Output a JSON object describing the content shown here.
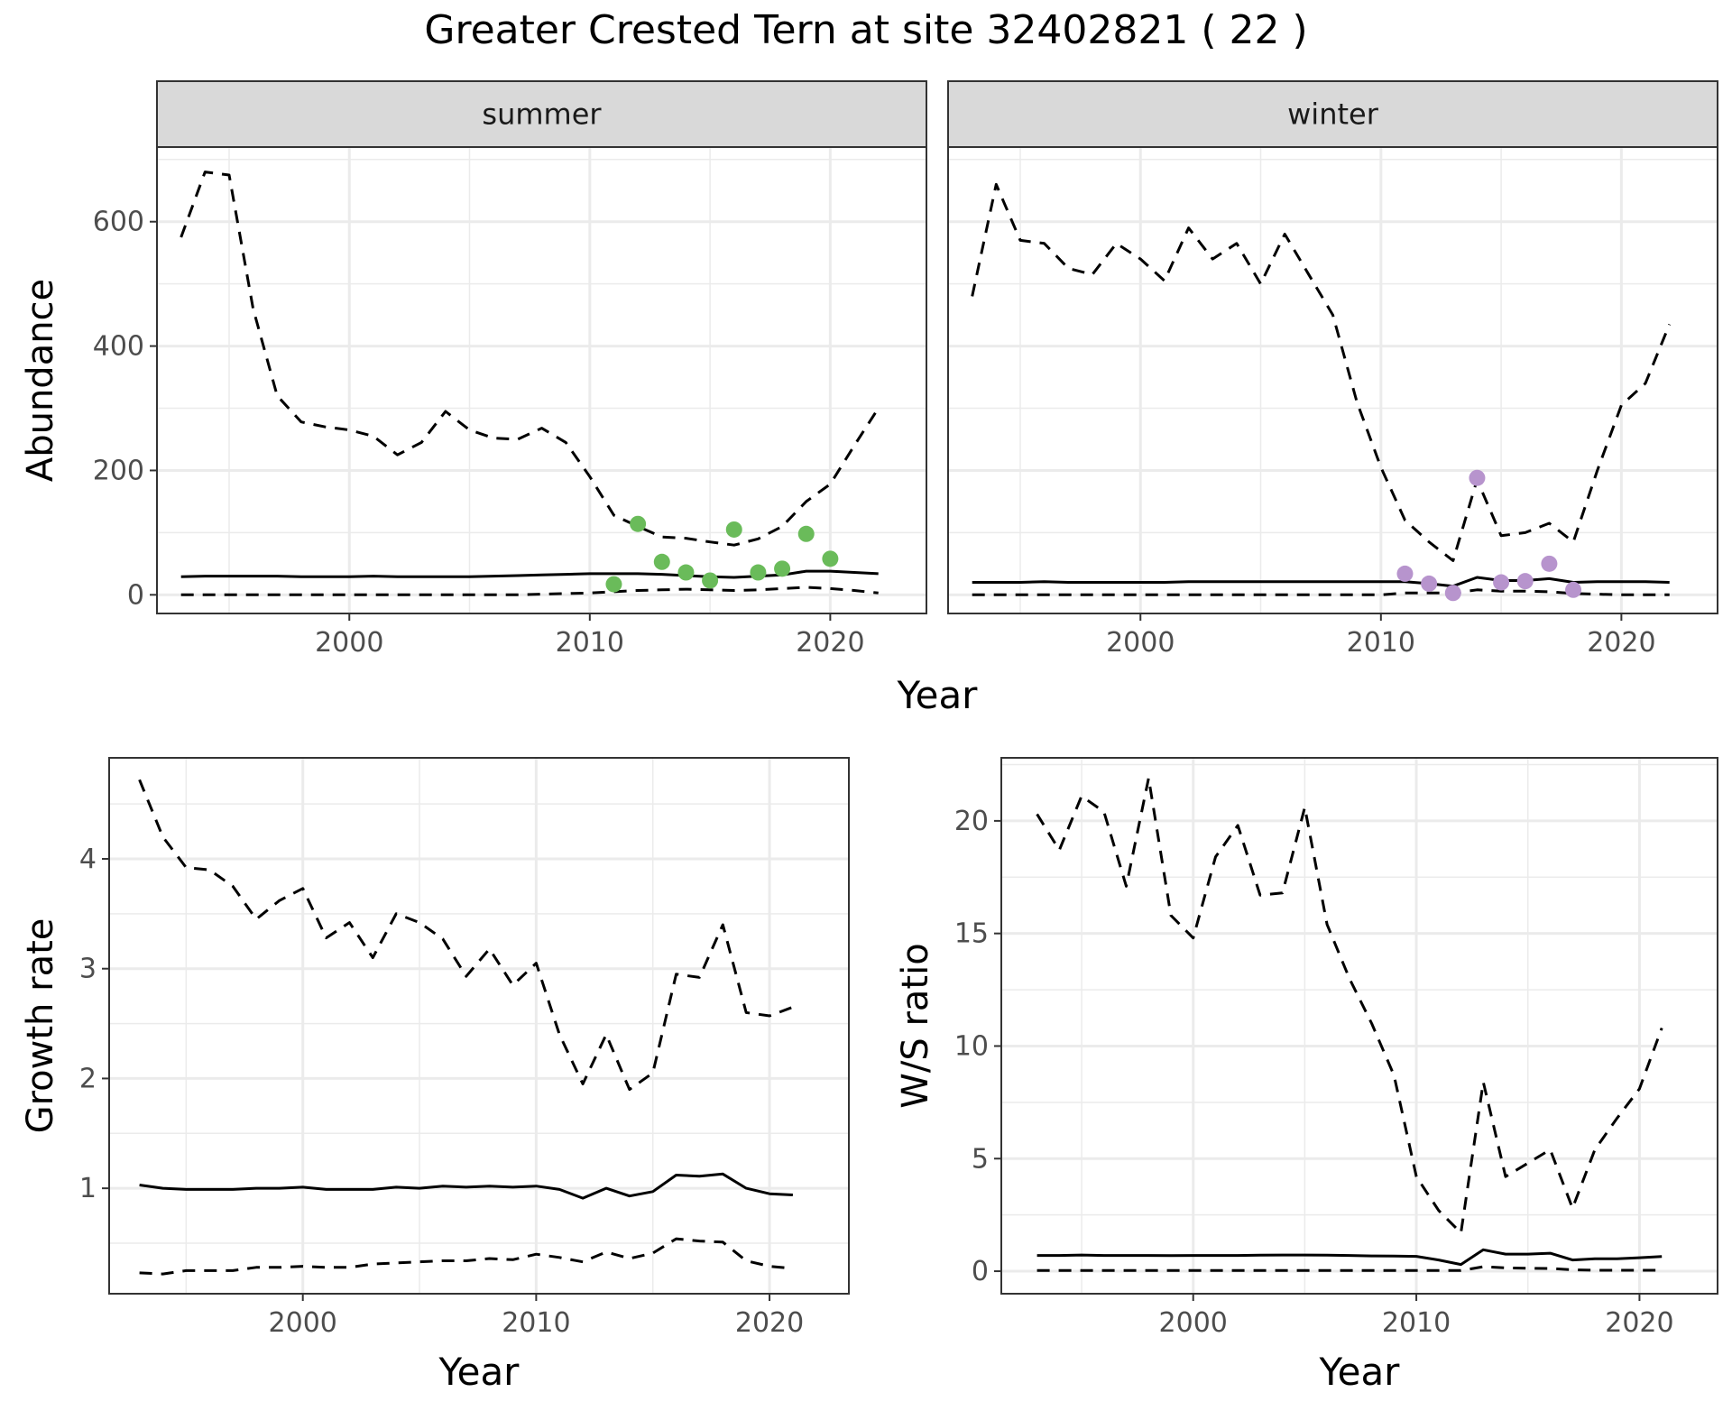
{
  "title": "Greater Crested Tern at site 32402821 ( 22 )",
  "colors": {
    "summer_points": "#6abb5a",
    "winter_points": "#b794cd",
    "lines": "#000000",
    "strip_fill": "#d9d9d9",
    "grid": "#ebebeb"
  },
  "chart_data": [
    {
      "type": "line",
      "facet": "summer",
      "xlabel": "Year",
      "ylabel": "Abundance",
      "xlim": [
        1992,
        2024
      ],
      "ylim": [
        -30,
        720
      ],
      "xticks": [
        2000,
        2010,
        2020
      ],
      "yticks": [
        0,
        200,
        400,
        600
      ],
      "grid": true,
      "series": [
        {
          "role": "upper",
          "style": "dashed",
          "x": [
            1993,
            1994,
            1995,
            1996,
            1997,
            1998,
            1999,
            2000,
            2001,
            2002,
            2003,
            2004,
            2005,
            2006,
            2007,
            2008,
            2009,
            2010,
            2011,
            2012,
            2013,
            2014,
            2015,
            2016,
            2017,
            2018,
            2019,
            2020,
            2021,
            2022
          ],
          "values": [
            575,
            680,
            675,
            460,
            320,
            278,
            270,
            265,
            255,
            225,
            245,
            295,
            265,
            252,
            250,
            268,
            245,
            190,
            128,
            110,
            93,
            91,
            85,
            80,
            90,
            110,
            150,
            178,
            240,
            300
          ]
        },
        {
          "role": "mean",
          "style": "solid",
          "x": [
            1993,
            1994,
            1995,
            1996,
            1997,
            1998,
            1999,
            2000,
            2001,
            2002,
            2003,
            2004,
            2005,
            2006,
            2007,
            2008,
            2009,
            2010,
            2011,
            2012,
            2013,
            2014,
            2015,
            2016,
            2017,
            2018,
            2019,
            2020,
            2021,
            2022
          ],
          "values": [
            29,
            30,
            30,
            30,
            30,
            29,
            29,
            29,
            30,
            29,
            29,
            29,
            29,
            30,
            31,
            32,
            33,
            34,
            34,
            34,
            33,
            31,
            29,
            28,
            30,
            32,
            38,
            38,
            36,
            34
          ]
        },
        {
          "role": "lower",
          "style": "dashed",
          "x": [
            1993,
            1994,
            1995,
            1996,
            1997,
            1998,
            1999,
            2000,
            2001,
            2002,
            2003,
            2004,
            2005,
            2006,
            2007,
            2008,
            2009,
            2010,
            2011,
            2012,
            2013,
            2014,
            2015,
            2016,
            2017,
            2018,
            2019,
            2020,
            2021,
            2022
          ],
          "values": [
            0,
            0,
            0,
            0,
            0,
            0,
            0,
            0,
            0,
            0,
            0,
            0,
            0,
            0,
            0,
            1,
            2,
            3,
            5,
            7,
            8,
            9,
            8,
            7,
            8,
            10,
            12,
            10,
            7,
            3
          ]
        },
        {
          "role": "observed",
          "style": "points",
          "x": [
            2011,
            2012,
            2013,
            2014,
            2015,
            2016,
            2017,
            2018,
            2019,
            2020
          ],
          "values": [
            17,
            114,
            53,
            36,
            23,
            105,
            36,
            42,
            98,
            58
          ]
        }
      ]
    },
    {
      "type": "line",
      "facet": "winter",
      "xlabel": "Year",
      "ylabel": "Abundance",
      "xlim": [
        1992,
        2024
      ],
      "ylim": [
        -30,
        720
      ],
      "xticks": [
        2000,
        2010,
        2020
      ],
      "yticks": [
        0,
        200,
        400,
        600
      ],
      "grid": true,
      "series": [
        {
          "role": "upper",
          "style": "dashed",
          "x": [
            1993,
            1994,
            1995,
            1996,
            1997,
            1998,
            1999,
            2000,
            2001,
            2002,
            2003,
            2004,
            2005,
            2006,
            2007,
            2008,
            2009,
            2010,
            2011,
            2012,
            2013,
            2014,
            2015,
            2016,
            2017,
            2018,
            2019,
            2020,
            2021,
            2022
          ],
          "values": [
            480,
            660,
            570,
            565,
            525,
            515,
            565,
            540,
            505,
            590,
            540,
            565,
            500,
            580,
            515,
            450,
            310,
            205,
            120,
            85,
            55,
            185,
            95,
            100,
            115,
            85,
            200,
            305,
            340,
            435
          ]
        },
        {
          "role": "mean",
          "style": "solid",
          "x": [
            1993,
            1994,
            1995,
            1996,
            1997,
            1998,
            1999,
            2000,
            2001,
            2002,
            2003,
            2004,
            2005,
            2006,
            2007,
            2008,
            2009,
            2010,
            2011,
            2012,
            2013,
            2014,
            2015,
            2016,
            2017,
            2018,
            2019,
            2020,
            2021,
            2022
          ],
          "values": [
            20,
            20,
            20,
            21,
            20,
            20,
            20,
            20,
            20,
            21,
            21,
            21,
            21,
            21,
            21,
            21,
            21,
            21,
            21,
            18,
            14,
            28,
            23,
            23,
            26,
            20,
            21,
            21,
            21,
            20
          ]
        },
        {
          "role": "lower",
          "style": "dashed",
          "x": [
            1993,
            1994,
            1995,
            1996,
            1997,
            1998,
            1999,
            2000,
            2001,
            2002,
            2003,
            2004,
            2005,
            2006,
            2007,
            2008,
            2009,
            2010,
            2011,
            2012,
            2013,
            2014,
            2015,
            2016,
            2017,
            2018,
            2019,
            2020,
            2021,
            2022
          ],
          "values": [
            0,
            0,
            0,
            0,
            0,
            0,
            0,
            0,
            0,
            0,
            0,
            0,
            0,
            0,
            0,
            0,
            0,
            0,
            3,
            3,
            3,
            8,
            6,
            6,
            5,
            2,
            1,
            0,
            0,
            0
          ]
        },
        {
          "role": "observed",
          "style": "points",
          "x": [
            2011,
            2012,
            2013,
            2014,
            2015,
            2016,
            2017,
            2018
          ],
          "values": [
            34,
            18,
            3,
            188,
            20,
            22,
            50,
            8
          ]
        }
      ]
    },
    {
      "type": "line",
      "xlabel": "Year",
      "ylabel": "Growth rate",
      "xlim": [
        1991.7,
        2023.4
      ],
      "ylim": [
        0.04,
        4.92
      ],
      "xticks": [
        2000,
        2010,
        2020
      ],
      "yticks": [
        1,
        2,
        3,
        4
      ],
      "grid": true,
      "series": [
        {
          "role": "upper",
          "style": "dashed",
          "x": [
            1993,
            1994,
            1995,
            1996,
            1997,
            1998,
            1999,
            2000,
            2001,
            2002,
            2003,
            2004,
            2005,
            2006,
            2007,
            2008,
            2009,
            2010,
            2011,
            2012,
            2013,
            2014,
            2015,
            2016,
            2017,
            2018,
            2019,
            2020,
            2021
          ],
          "values": [
            4.72,
            4.2,
            3.92,
            3.9,
            3.75,
            3.45,
            3.62,
            3.73,
            3.28,
            3.42,
            3.1,
            3.5,
            3.42,
            3.27,
            2.93,
            3.18,
            2.85,
            3.05,
            2.4,
            1.95,
            2.4,
            1.9,
            2.05,
            2.95,
            2.92,
            3.4,
            2.6,
            2.57,
            2.65
          ]
        },
        {
          "role": "mean",
          "style": "solid",
          "x": [
            1993,
            1994,
            1995,
            1996,
            1997,
            1998,
            1999,
            2000,
            2001,
            2002,
            2003,
            2004,
            2005,
            2006,
            2007,
            2008,
            2009,
            2010,
            2011,
            2012,
            2013,
            2014,
            2015,
            2016,
            2017,
            2018,
            2019,
            2020,
            2021
          ],
          "values": [
            1.03,
            1.0,
            0.99,
            0.99,
            0.99,
            1.0,
            1.0,
            1.01,
            0.99,
            0.99,
            0.99,
            1.01,
            1.0,
            1.02,
            1.01,
            1.02,
            1.01,
            1.02,
            0.99,
            0.91,
            1.0,
            0.93,
            0.97,
            1.12,
            1.11,
            1.13,
            1.0,
            0.95,
            0.94
          ]
        },
        {
          "role": "lower",
          "style": "dashed",
          "x": [
            1993,
            1994,
            1995,
            1996,
            1997,
            1998,
            1999,
            2000,
            2001,
            2002,
            2003,
            2004,
            2005,
            2006,
            2007,
            2008,
            2009,
            2010,
            2011,
            2012,
            2013,
            2014,
            2015,
            2016,
            2017,
            2018,
            2019,
            2020,
            2021
          ],
          "values": [
            0.23,
            0.22,
            0.25,
            0.25,
            0.25,
            0.28,
            0.28,
            0.29,
            0.28,
            0.28,
            0.31,
            0.32,
            0.33,
            0.34,
            0.34,
            0.36,
            0.35,
            0.4,
            0.37,
            0.33,
            0.42,
            0.36,
            0.41,
            0.54,
            0.52,
            0.51,
            0.34,
            0.29,
            0.27
          ]
        }
      ]
    },
    {
      "type": "line",
      "xlabel": "Year",
      "ylabel": "W/S ratio",
      "xlim": [
        1991.4,
        2023.5
      ],
      "ylim": [
        -1.0,
        22.8
      ],
      "xticks": [
        2000,
        2010,
        2020
      ],
      "yticks": [
        0,
        5,
        10,
        15,
        20
      ],
      "grid": true,
      "series": [
        {
          "role": "upper",
          "style": "dashed",
          "x": [
            1993,
            1994,
            1995,
            1996,
            1997,
            1998,
            1999,
            2000,
            2001,
            2002,
            2003,
            2004,
            2005,
            2006,
            2007,
            2008,
            2009,
            2010,
            2011,
            2012,
            2013,
            2014,
            2015,
            2016,
            2017,
            2018,
            2019,
            2020,
            2021
          ],
          "values": [
            20.3,
            18.7,
            21.1,
            20.4,
            17.1,
            21.9,
            15.8,
            14.8,
            18.4,
            19.8,
            16.7,
            16.8,
            20.6,
            15.4,
            13.0,
            11.0,
            8.7,
            4.2,
            2.7,
            1.7,
            8.4,
            4.2,
            4.8,
            5.4,
            2.8,
            5.4,
            6.8,
            8.1,
            10.8
          ]
        },
        {
          "role": "mean",
          "style": "solid",
          "x": [
            1993,
            1994,
            1995,
            1996,
            1997,
            1998,
            1999,
            2000,
            2001,
            2002,
            2003,
            2004,
            2005,
            2006,
            2007,
            2008,
            2009,
            2010,
            2011,
            2012,
            2013,
            2014,
            2015,
            2016,
            2017,
            2018,
            2019,
            2020,
            2021
          ],
          "values": [
            0.7,
            0.7,
            0.72,
            0.7,
            0.7,
            0.7,
            0.69,
            0.7,
            0.7,
            0.7,
            0.71,
            0.72,
            0.72,
            0.71,
            0.7,
            0.68,
            0.67,
            0.66,
            0.5,
            0.3,
            0.95,
            0.76,
            0.76,
            0.8,
            0.5,
            0.55,
            0.55,
            0.6,
            0.65
          ]
        },
        {
          "role": "lower",
          "style": "dashed",
          "x": [
            1993,
            1994,
            1995,
            1996,
            1997,
            1998,
            1999,
            2000,
            2001,
            2002,
            2003,
            2004,
            2005,
            2006,
            2007,
            2008,
            2009,
            2010,
            2011,
            2012,
            2013,
            2014,
            2015,
            2016,
            2017,
            2018,
            2019,
            2020,
            2021
          ],
          "values": [
            0.03,
            0.03,
            0.03,
            0.03,
            0.03,
            0.03,
            0.03,
            0.03,
            0.03,
            0.03,
            0.03,
            0.03,
            0.03,
            0.03,
            0.03,
            0.03,
            0.03,
            0.03,
            0.03,
            0.03,
            0.2,
            0.15,
            0.13,
            0.12,
            0.06,
            0.04,
            0.04,
            0.04,
            0.04
          ]
        }
      ]
    }
  ]
}
